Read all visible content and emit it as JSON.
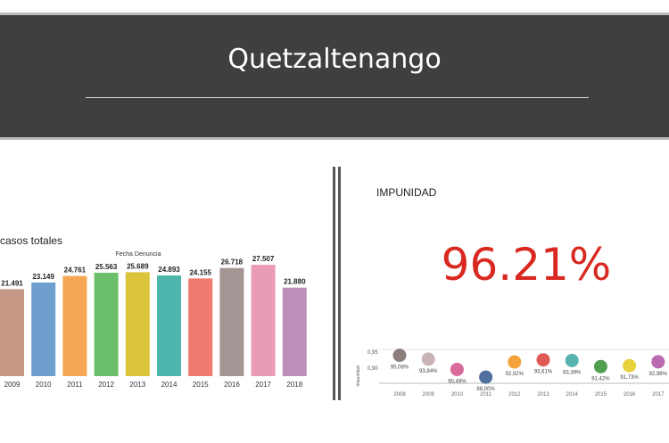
{
  "header": {
    "title": "Quetzaltenango"
  },
  "left_panel": {
    "label": "casos totales"
  },
  "right_panel": {
    "label": "IMPUNIDAD",
    "value": "96.21%"
  },
  "colors": {
    "header_bg": "#3f3f3f",
    "accent_red": "#d8281f"
  },
  "chart_data": [
    {
      "type": "bar",
      "title": "Fecha Denuncia",
      "categories": [
        "2009",
        "2010",
        "2011",
        "2012",
        "2013",
        "2014",
        "2015",
        "2016",
        "2017",
        "2018"
      ],
      "values": [
        21491,
        23149,
        24761,
        25563,
        25689,
        24893,
        24155,
        26718,
        27507,
        21880
      ],
      "value_labels": [
        "21.491",
        "23.149",
        "24.761",
        "25.563",
        "25.689",
        "24.893",
        "24.155",
        "26.718",
        "27.507",
        "21.880"
      ],
      "colors": [
        "#c89886",
        "#6f9fcf",
        "#f5a754",
        "#6cbf6a",
        "#dcc43d",
        "#4fb6ad",
        "#ef7a70",
        "#a39593",
        "#e99bb8",
        "#bf8fba"
      ],
      "ylim": [
        0,
        30000
      ]
    },
    {
      "type": "scatter",
      "ylabel": "Impunidad",
      "y_ticks": [
        "0,95",
        "0,90"
      ],
      "categories": [
        "2008",
        "2009",
        "2010",
        "2011",
        "2012",
        "2013",
        "2014",
        "2015",
        "2016",
        "2017"
      ],
      "values": [
        95.08,
        93.84,
        90.49,
        88.0,
        92.92,
        93.61,
        93.39,
        91.42,
        91.73,
        92.98
      ],
      "value_labels": [
        "95,08%",
        "93,84%",
        "90,49%",
        "88,00%",
        "92,92%",
        "93,61%",
        "93,39%",
        "91,42%",
        "91,73%",
        "92,98%"
      ],
      "colors": [
        "#8c7f7b",
        "#c9b4b6",
        "#d96a9c",
        "#4f6f9e",
        "#f2a33b",
        "#e05a55",
        "#57b3ad",
        "#4f9f4f",
        "#e8d13c",
        "#b96bb0"
      ],
      "ylim": [
        86,
        97
      ]
    }
  ]
}
